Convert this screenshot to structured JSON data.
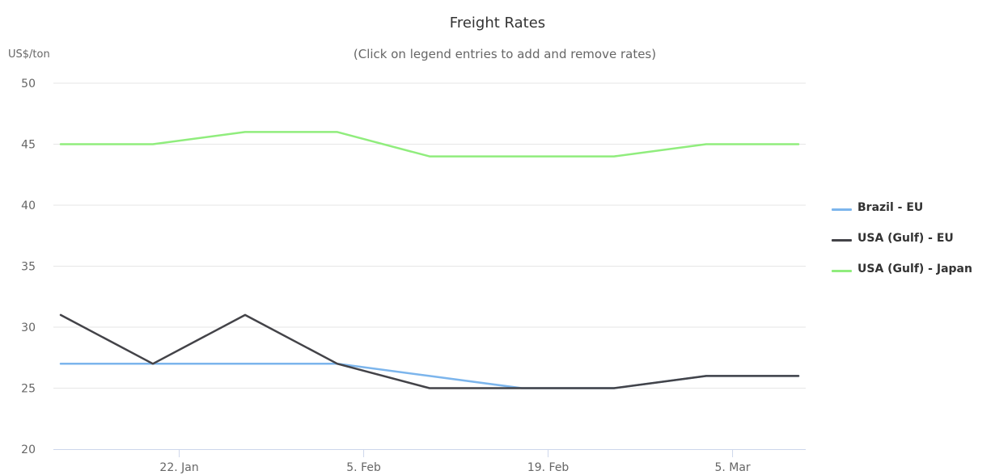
{
  "title": "Freight Rates",
  "subtitle": "(Click on legend entries to add and remove rates)",
  "chart_data": {
    "type": "line",
    "title": "Freight Rates",
    "subtitle": "(Click on legend entries to add and remove rates)",
    "xlabel": "",
    "ylabel": "US$/ton",
    "x": [
      "2022-01-13",
      "2022-01-20",
      "2022-01-27",
      "2022-02-03",
      "2022-02-10",
      "2022-02-17",
      "2022-02-24",
      "2022-03-03",
      "2022-03-10"
    ],
    "x_ticks": [
      "22. Jan",
      "5. Feb",
      "19. Feb",
      "5. Mar"
    ],
    "y_ticks": [
      20,
      25,
      30,
      35,
      40,
      45,
      50
    ],
    "ylim": [
      20,
      50
    ],
    "grid": true,
    "legend_position": "right",
    "series": [
      {
        "name": "Brazil - EU",
        "color": "#7cb5ec",
        "values": [
          27,
          27,
          27,
          27,
          26,
          25,
          25,
          26,
          26
        ]
      },
      {
        "name": "USA (Gulf) - EU",
        "color": "#434348",
        "values": [
          31,
          27,
          31,
          27,
          25,
          25,
          25,
          26,
          26
        ]
      },
      {
        "name": "USA (Gulf) - Japan",
        "color": "#90ed7d",
        "values": [
          45,
          45,
          46,
          46,
          44,
          44,
          44,
          45,
          45
        ]
      }
    ]
  }
}
